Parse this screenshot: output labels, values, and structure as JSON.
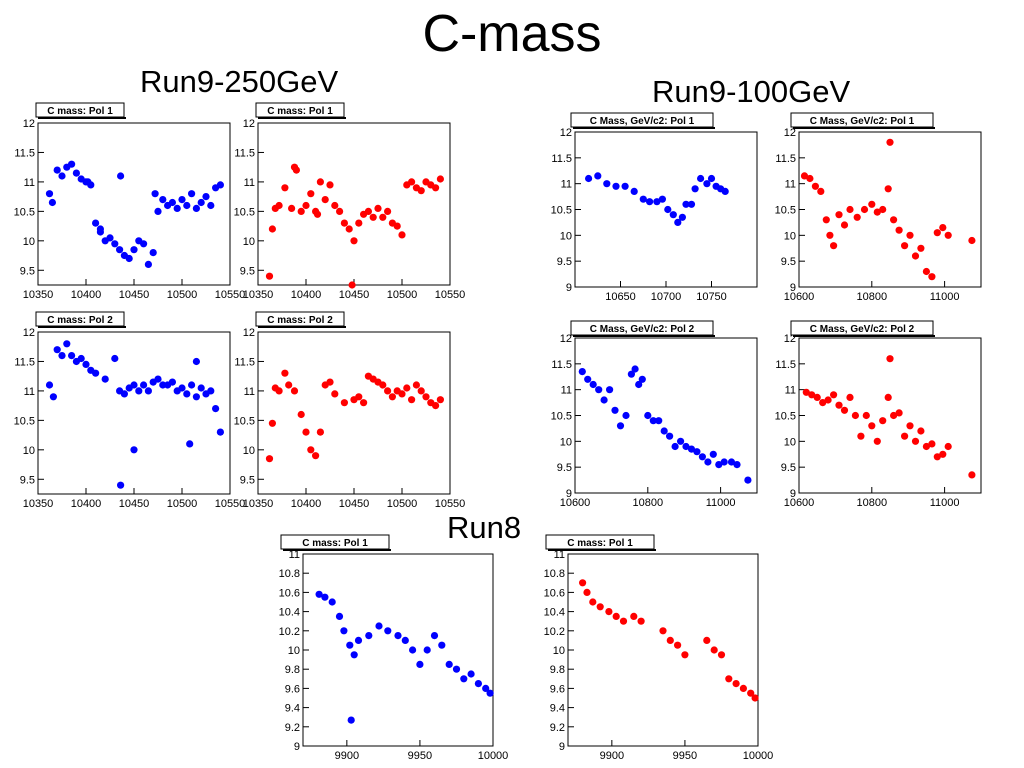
{
  "title": "C-mass",
  "groups": {
    "run9_250": "Run9-250GeV",
    "run9_100": "Run9-100GeV",
    "run8": "Run8"
  },
  "colors": {
    "blue": "#0000ff",
    "red": "#ff0000"
  },
  "chart_data": [
    {
      "type": "scatter",
      "title": "C mass: Pol 1",
      "color": "#0000ff",
      "xlim": [
        10350,
        10550
      ],
      "ylim": [
        9.25,
        12
      ],
      "xticks": [
        10350,
        10400,
        10450,
        10500,
        10550
      ],
      "yticks": [
        9.5,
        10,
        10.5,
        11,
        11.5,
        12
      ],
      "x": [
        10362,
        10365,
        10370,
        10375,
        10380,
        10385,
        10390,
        10395,
        10400,
        10405,
        10410,
        10415,
        10420,
        10425,
        10430,
        10435,
        10440,
        10445,
        10450,
        10455,
        10460,
        10465,
        10470,
        10475,
        10480,
        10485,
        10490,
        10495,
        10500,
        10505,
        10510,
        10515,
        10520,
        10525,
        10530,
        10535,
        10540,
        10436,
        10472,
        10402,
        10415
      ],
      "y": [
        10.8,
        10.65,
        11.2,
        11.1,
        11.25,
        11.3,
        11.15,
        11.05,
        11.0,
        10.95,
        10.3,
        10.15,
        10.0,
        10.05,
        9.95,
        9.85,
        9.75,
        9.7,
        9.85,
        10.0,
        9.95,
        9.6,
        9.8,
        10.5,
        10.7,
        10.6,
        10.65,
        10.55,
        10.7,
        10.6,
        10.8,
        10.55,
        10.65,
        10.75,
        10.6,
        10.9,
        10.95,
        11.1,
        10.8,
        11.0,
        10.2
      ]
    },
    {
      "type": "scatter",
      "title": "C mass: Pol 1",
      "color": "#ff0000",
      "xlim": [
        10350,
        10550
      ],
      "ylim": [
        9.25,
        12
      ],
      "xticks": [
        10350,
        10400,
        10450,
        10500,
        10550
      ],
      "yticks": [
        9.5,
        10,
        10.5,
        11,
        11.5,
        12
      ],
      "x": [
        10362,
        10365,
        10368,
        10372,
        10378,
        10385,
        10390,
        10395,
        10400,
        10405,
        10410,
        10415,
        10420,
        10425,
        10430,
        10435,
        10440,
        10445,
        10450,
        10455,
        10460,
        10465,
        10470,
        10475,
        10480,
        10485,
        10490,
        10495,
        10500,
        10505,
        10510,
        10515,
        10520,
        10525,
        10530,
        10535,
        10540,
        10388,
        10412,
        10448
      ],
      "y": [
        9.4,
        10.2,
        10.55,
        10.6,
        10.9,
        10.55,
        11.2,
        10.5,
        10.6,
        10.8,
        10.5,
        11.0,
        10.7,
        10.95,
        10.6,
        10.5,
        10.3,
        10.2,
        10.0,
        10.3,
        10.45,
        10.5,
        10.4,
        10.55,
        10.4,
        10.5,
        10.3,
        10.25,
        10.1,
        10.95,
        11.0,
        10.9,
        10.85,
        11.0,
        10.95,
        10.9,
        11.05,
        11.25,
        10.45,
        9.25
      ]
    },
    {
      "type": "scatter",
      "title": "C mass: Pol 2",
      "color": "#0000ff",
      "xlim": [
        10350,
        10550
      ],
      "ylim": [
        9.25,
        12
      ],
      "xticks": [
        10350,
        10400,
        10450,
        10500,
        10550
      ],
      "yticks": [
        9.5,
        10,
        10.5,
        11,
        11.5,
        12
      ],
      "x": [
        10362,
        10366,
        10370,
        10375,
        10380,
        10385,
        10390,
        10395,
        10400,
        10405,
        10410,
        10420,
        10430,
        10435,
        10440,
        10445,
        10450,
        10455,
        10460,
        10465,
        10470,
        10475,
        10480,
        10485,
        10490,
        10495,
        10500,
        10505,
        10510,
        10515,
        10520,
        10525,
        10530,
        10535,
        10540,
        10436,
        10450,
        10508,
        10515
      ],
      "y": [
        11.1,
        10.9,
        11.7,
        11.6,
        11.8,
        11.6,
        11.5,
        11.55,
        11.45,
        11.35,
        11.3,
        11.2,
        11.55,
        11.0,
        10.95,
        11.05,
        11.1,
        11.0,
        11.1,
        11.0,
        11.15,
        11.2,
        11.1,
        11.1,
        11.15,
        11.0,
        11.05,
        10.95,
        11.1,
        11.5,
        11.05,
        10.95,
        11.0,
        10.7,
        10.3,
        9.4,
        10.0,
        10.1,
        10.9
      ]
    },
    {
      "type": "scatter",
      "title": "C mass: Pol 2",
      "color": "#ff0000",
      "xlim": [
        10350,
        10550
      ],
      "ylim": [
        9.25,
        12
      ],
      "xticks": [
        10350,
        10400,
        10450,
        10500,
        10550
      ],
      "yticks": [
        9.5,
        10,
        10.5,
        11,
        11.5,
        12
      ],
      "x": [
        10362,
        10365,
        10368,
        10372,
        10378,
        10382,
        10388,
        10395,
        10400,
        10405,
        10410,
        10415,
        10420,
        10425,
        10430,
        10440,
        10450,
        10455,
        10460,
        10465,
        10470,
        10475,
        10480,
        10485,
        10490,
        10495,
        10500,
        10505,
        10510,
        10515,
        10520,
        10525,
        10530,
        10535,
        10540
      ],
      "y": [
        9.85,
        10.45,
        11.05,
        11.0,
        11.3,
        11.1,
        11.0,
        10.6,
        10.3,
        10.0,
        9.9,
        10.3,
        11.1,
        11.15,
        10.95,
        10.8,
        10.85,
        10.9,
        10.8,
        11.25,
        11.2,
        11.15,
        11.1,
        11.0,
        10.9,
        11.0,
        10.95,
        11.05,
        10.85,
        11.1,
        11.0,
        10.9,
        10.8,
        10.75,
        10.85
      ]
    },
    {
      "type": "scatter",
      "title": "C Mass, GeV/c2: Pol 1",
      "color": "#0000ff",
      "xlim": [
        10600,
        10800
      ],
      "ylim": [
        9,
        12
      ],
      "xticks": [
        10650,
        10700,
        10750
      ],
      "yticks": [
        9,
        9.5,
        10,
        10.5,
        11,
        11.5,
        12
      ],
      "x": [
        10615,
        10625,
        10635,
        10645,
        10655,
        10665,
        10675,
        10682,
        10690,
        10696,
        10702,
        10708,
        10713,
        10718,
        10722,
        10728,
        10732,
        10738,
        10745,
        10750,
        10755,
        10760,
        10765
      ],
      "y": [
        11.1,
        11.15,
        11.0,
        10.95,
        10.95,
        10.85,
        10.7,
        10.65,
        10.65,
        10.7,
        10.5,
        10.4,
        10.25,
        10.35,
        10.6,
        10.6,
        10.9,
        11.1,
        11.0,
        11.1,
        10.95,
        10.9,
        10.85
      ]
    },
    {
      "type": "scatter",
      "title": "C Mass, GeV/c2: Pol 1",
      "color": "#ff0000",
      "xlim": [
        10600,
        11100
      ],
      "ylim": [
        9,
        12
      ],
      "xticks": [
        10600,
        10800,
        11000
      ],
      "yticks": [
        9,
        9.5,
        10,
        10.5,
        11,
        11.5,
        12
      ],
      "x": [
        10615,
        10630,
        10645,
        10660,
        10675,
        10685,
        10695,
        10710,
        10725,
        10740,
        10760,
        10780,
        10800,
        10815,
        10830,
        10845,
        10860,
        10875,
        10890,
        10905,
        10920,
        10935,
        10950,
        10965,
        10980,
        10995,
        11010,
        11075,
        10850
      ],
      "y": [
        11.15,
        11.1,
        10.95,
        10.85,
        10.3,
        10.0,
        9.8,
        10.4,
        10.2,
        10.5,
        10.35,
        10.5,
        10.6,
        10.45,
        10.5,
        10.9,
        10.3,
        10.1,
        9.8,
        10.0,
        9.6,
        9.75,
        9.3,
        9.2,
        10.05,
        10.15,
        10.0,
        9.9,
        11.8
      ]
    },
    {
      "type": "scatter",
      "title": "C Mass, GeV/c2: Pol 2",
      "color": "#0000ff",
      "xlim": [
        10600,
        11100
      ],
      "ylim": [
        9,
        12
      ],
      "xticks": [
        10600,
        10800,
        11000
      ],
      "yticks": [
        9,
        9.5,
        10,
        10.5,
        11,
        11.5,
        12
      ],
      "x": [
        10620,
        10635,
        10650,
        10665,
        10680,
        10695,
        10710,
        10725,
        10740,
        10755,
        10765,
        10775,
        10785,
        10800,
        10815,
        10830,
        10845,
        10860,
        10875,
        10890,
        10905,
        10920,
        10935,
        10950,
        10965,
        10980,
        10995,
        11010,
        11030,
        11045,
        11075
      ],
      "y": [
        11.35,
        11.2,
        11.1,
        11.0,
        10.8,
        11.0,
        10.6,
        10.3,
        10.5,
        11.3,
        11.4,
        11.1,
        11.2,
        10.5,
        10.4,
        10.4,
        10.2,
        10.1,
        9.9,
        10.0,
        9.9,
        9.85,
        9.8,
        9.7,
        9.6,
        9.75,
        9.55,
        9.6,
        9.6,
        9.55,
        9.25
      ]
    },
    {
      "type": "scatter",
      "title": "C Mass, GeV/c2: Pol 2",
      "color": "#ff0000",
      "xlim": [
        10600,
        11100
      ],
      "ylim": [
        9,
        12
      ],
      "xticks": [
        10600,
        10800,
        11000
      ],
      "yticks": [
        9,
        9.5,
        10,
        10.5,
        11,
        11.5,
        12
      ],
      "x": [
        10620,
        10635,
        10650,
        10665,
        10680,
        10695,
        10710,
        10725,
        10740,
        10755,
        10770,
        10785,
        10800,
        10815,
        10830,
        10845,
        10860,
        10875,
        10890,
        10905,
        10920,
        10935,
        10950,
        10965,
        10980,
        10995,
        11010,
        11075,
        10850
      ],
      "y": [
        10.95,
        10.9,
        10.85,
        10.75,
        10.8,
        10.9,
        10.7,
        10.6,
        10.85,
        10.5,
        10.1,
        10.5,
        10.3,
        10.0,
        10.4,
        10.85,
        10.5,
        10.55,
        10.1,
        10.3,
        10.0,
        10.2,
        9.9,
        9.95,
        9.7,
        9.75,
        9.9,
        9.35,
        11.6
      ]
    },
    {
      "type": "scatter",
      "title": "C mass: Pol 1",
      "color": "#0000ff",
      "xlim": [
        9870,
        10000
      ],
      "ylim": [
        9,
        11
      ],
      "xticks": [
        9900,
        9950,
        10000
      ],
      "yticks": [
        9,
        9.2,
        9.4,
        9.6,
        9.8,
        10,
        10.2,
        10.4,
        10.6,
        10.8,
        11
      ],
      "x": [
        9881,
        9885,
        9890,
        9895,
        9898,
        9902,
        9905,
        9908,
        9915,
        9922,
        9928,
        9935,
        9940,
        9945,
        9950,
        9955,
        9960,
        9965,
        9970,
        9975,
        9980,
        9985,
        9990,
        9995,
        9998,
        9903
      ],
      "y": [
        10.58,
        10.55,
        10.5,
        10.35,
        10.2,
        10.05,
        9.95,
        10.1,
        10.15,
        10.25,
        10.2,
        10.15,
        10.1,
        10.0,
        9.85,
        10.0,
        10.15,
        10.05,
        9.85,
        9.8,
        9.7,
        9.75,
        9.65,
        9.6,
        9.55,
        9.27
      ]
    },
    {
      "type": "scatter",
      "title": "C mass: Pol 1",
      "color": "#ff0000",
      "xlim": [
        9870,
        10000
      ],
      "ylim": [
        9,
        11
      ],
      "xticks": [
        9900,
        9950,
        10000
      ],
      "yticks": [
        9,
        9.2,
        9.4,
        9.6,
        9.8,
        10,
        10.2,
        10.4,
        10.6,
        10.8,
        11
      ],
      "x": [
        9880,
        9883,
        9887,
        9892,
        9898,
        9903,
        9908,
        9915,
        9920,
        9935,
        9940,
        9945,
        9950,
        9965,
        9970,
        9975,
        9980,
        9985,
        9990,
        9995,
        9998
      ],
      "y": [
        10.7,
        10.6,
        10.5,
        10.45,
        10.4,
        10.35,
        10.3,
        10.35,
        10.3,
        10.2,
        10.1,
        10.05,
        9.95,
        10.1,
        10.0,
        9.95,
        9.7,
        9.65,
        9.6,
        9.55,
        9.5
      ]
    }
  ]
}
